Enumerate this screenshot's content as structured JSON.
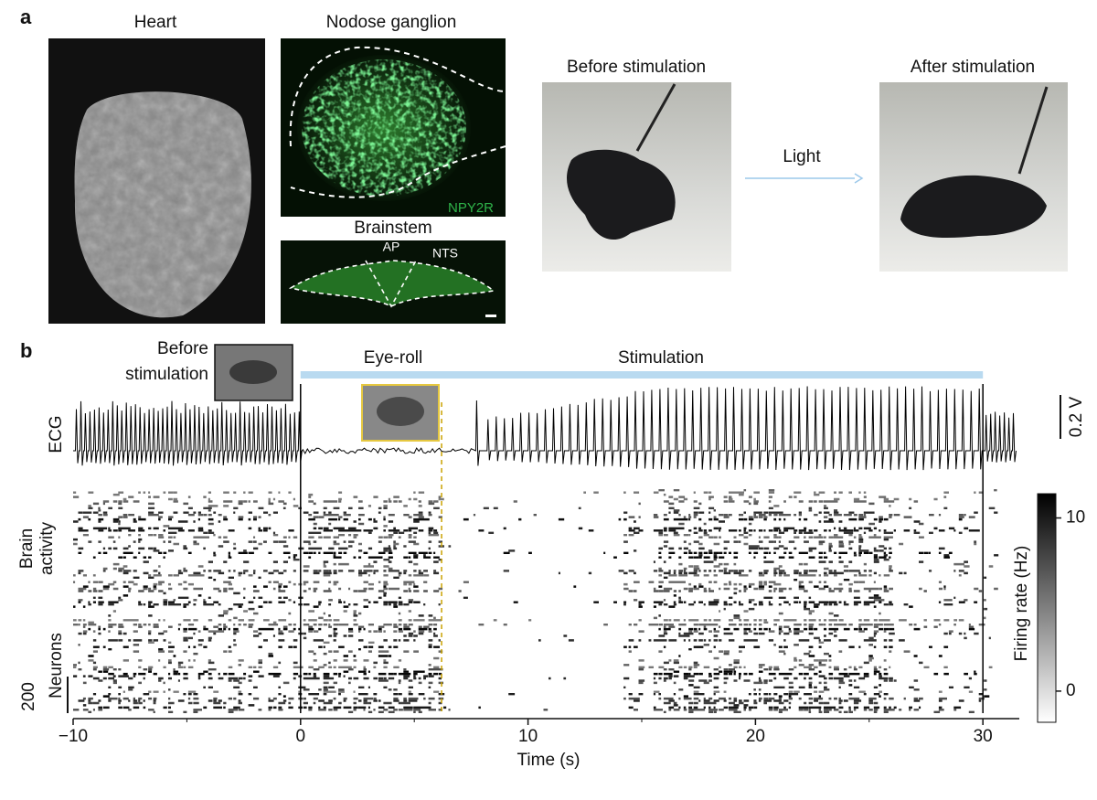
{
  "panel_a": {
    "label": "a",
    "heart_title": "Heart",
    "nodose_title": "Nodose ganglion",
    "nodose_marker": "NPY2R",
    "brainstem_title": "Brainstem",
    "brainstem_regions": [
      "AP",
      "NTS"
    ],
    "before_title": "Before stimulation",
    "after_title": "After stimulation",
    "arrow_label": "Light"
  },
  "panel_b": {
    "label": "b",
    "before_label": [
      "Before",
      "stimulation"
    ],
    "eye_roll_label": "Eye-roll",
    "stimulation_label": "Stimulation",
    "ecg_label": "ECG",
    "ecg_scale": "0.2 V",
    "brain_label": [
      "Brain",
      "activity"
    ],
    "neurons_label": "Neurons",
    "neurons_scale": "200",
    "xlabel": "Time (s)",
    "xlim": [
      -10,
      31.6
    ],
    "xticks": [
      {
        "value": -10,
        "label": "−10"
      },
      0,
      10,
      20,
      30
    ],
    "stimulation": [
      0,
      30
    ],
    "eye_roll_time": 6.2,
    "colorbar": {
      "label": "Firing rate (Hz)",
      "lim": [
        -1.8,
        11.4
      ],
      "ticks": [
        0,
        10
      ]
    }
  }
}
